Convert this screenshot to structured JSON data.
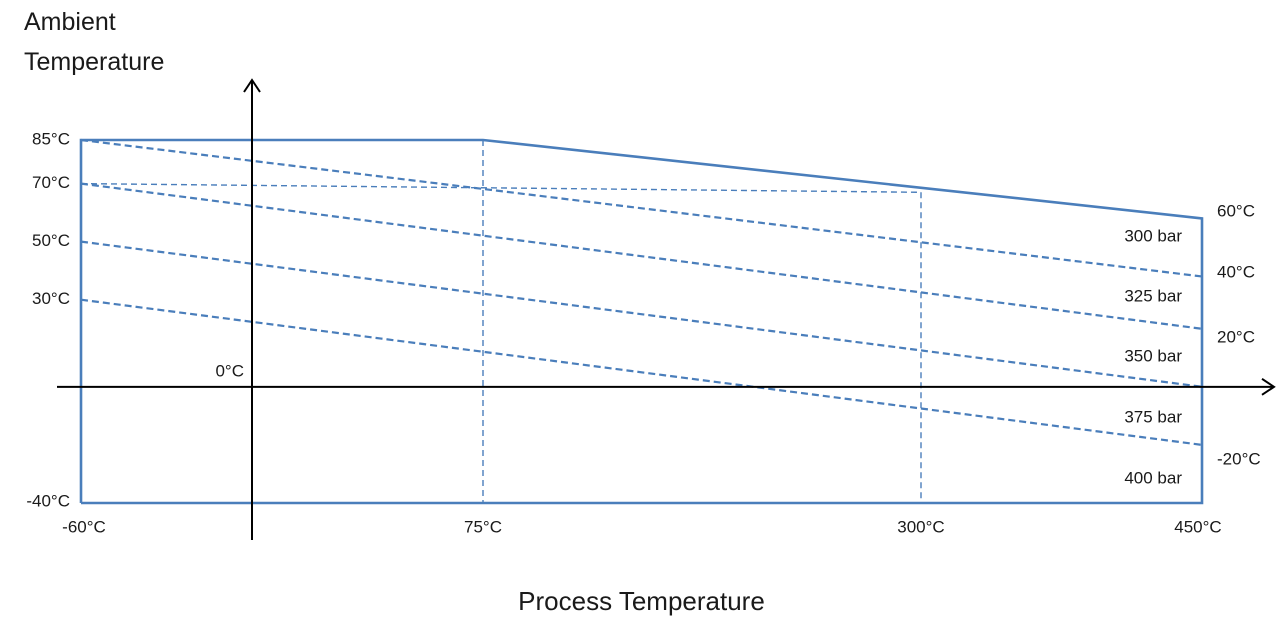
{
  "chart_data": {
    "type": "line",
    "title": "",
    "ylabel_lines": [
      "Ambient",
      "Temperature"
    ],
    "xlabel": "Process Temperature",
    "unit": "°C",
    "x_axis_ticks": [
      {
        "label": "-60°C",
        "value": -60
      },
      {
        "label": "75°C",
        "value": 75
      },
      {
        "label": "300°C",
        "value": 300
      },
      {
        "label": "450°C",
        "value": 450
      }
    ],
    "y_axis_left_ticks": [
      {
        "label": "85°C",
        "value": 85
      },
      {
        "label": "70°C",
        "value": 70
      },
      {
        "label": "50°C",
        "value": 50
      },
      {
        "label": "30°C",
        "value": 30
      },
      {
        "label": "-40°C",
        "value": -40
      }
    ],
    "origin_label": {
      "label": "0°C",
      "value": 0
    },
    "y_axis_right_ticks": [
      {
        "label": "60°C",
        "value": 60
      },
      {
        "label": "40°C",
        "value": 40
      },
      {
        "label": "20°C",
        "value": 20
      },
      {
        "label": "-20°C",
        "value": -20
      }
    ],
    "xlim": [
      -60,
      450
    ],
    "ylim": [
      -40,
      85
    ],
    "envelope": {
      "name": "",
      "style": "solid",
      "points": [
        [
          -60,
          -40
        ],
        [
          -60,
          85
        ],
        [
          75,
          85
        ],
        [
          450,
          58
        ],
        [
          450,
          -40
        ],
        [
          -60,
          -40
        ]
      ]
    },
    "reference_lines": [
      {
        "style": "dashed",
        "points": [
          [
            75,
            85
          ],
          [
            75,
            -40
          ]
        ]
      },
      {
        "style": "dashed",
        "points": [
          [
            300,
            67
          ],
          [
            300,
            -40
          ]
        ]
      },
      {
        "style": "dashed",
        "points": [
          [
            -60,
            70
          ],
          [
            300,
            67
          ]
        ]
      }
    ],
    "series": [
      {
        "name": "300 bar",
        "style": "dashed",
        "x": [
          -60,
          450
        ],
        "y": [
          85,
          38
        ]
      },
      {
        "name": "325 bar",
        "style": "dashed",
        "x": [
          -60,
          450
        ],
        "y": [
          70,
          20
        ]
      },
      {
        "name": "350 bar",
        "style": "dashed",
        "x": [
          -60,
          450
        ],
        "y": [
          50,
          0
        ]
      },
      {
        "name": "375 bar",
        "style": "dashed",
        "x": [
          -60,
          450
        ],
        "y": [
          30,
          -20
        ]
      }
    ],
    "region_labels": [
      "300 bar",
      "325 bar",
      "350 bar",
      "375 bar",
      "400 bar"
    ],
    "line_color": "#4a7ebb",
    "axis_color": "#000000"
  }
}
